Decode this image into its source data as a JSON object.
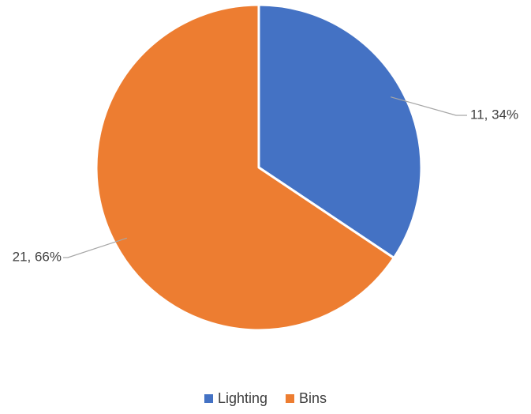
{
  "chart_data": {
    "type": "pie",
    "categories": [
      "Lighting",
      "Bins"
    ],
    "values": [
      11,
      21
    ],
    "percentages": [
      "34%",
      "66%"
    ],
    "data_labels": [
      "11, 34%",
      "21, 66%"
    ],
    "colors": [
      "#4472C4",
      "#ED7D31"
    ],
    "legend": {
      "position": "bottom",
      "entries": [
        "Lighting",
        "Bins"
      ]
    },
    "start_angle": "12 o'clock",
    "direction": "clockwise"
  }
}
